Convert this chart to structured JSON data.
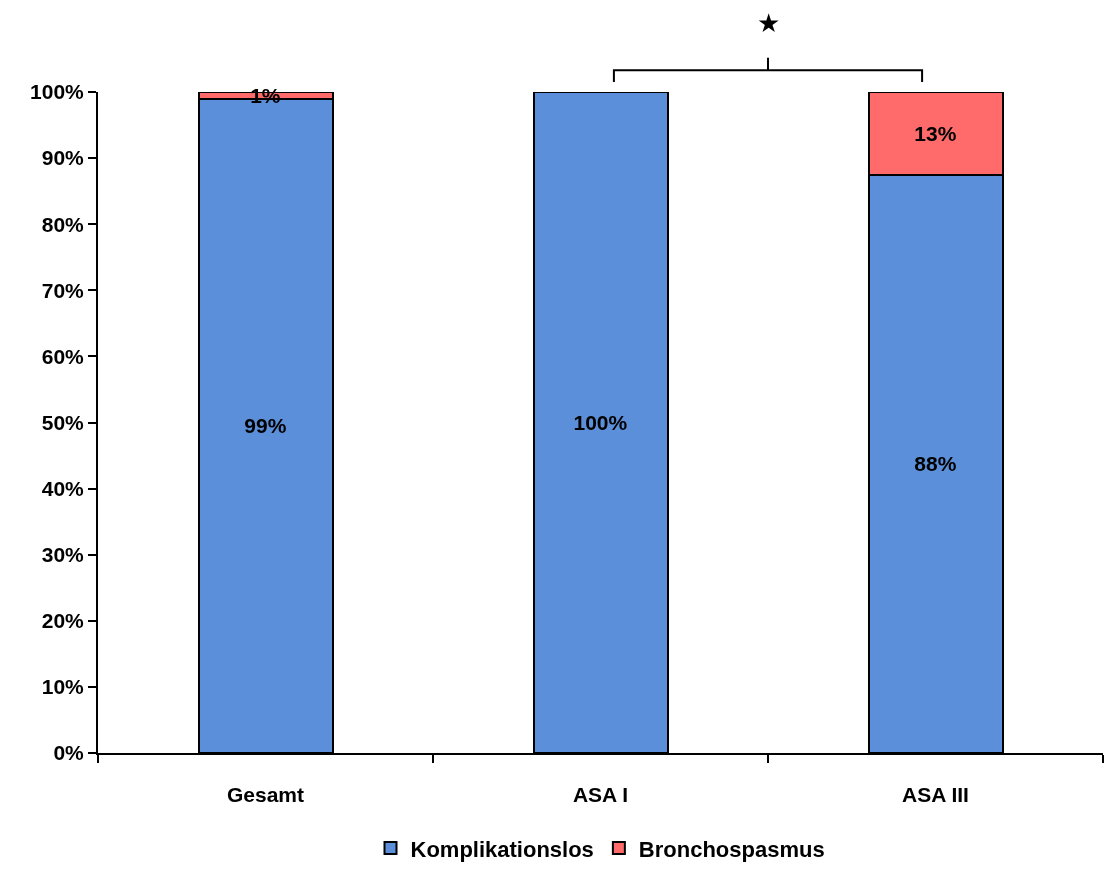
{
  "chart_data": {
    "type": "bar",
    "stacked": true,
    "categories": [
      "Gesamt",
      "ASA I",
      "ASA III"
    ],
    "series": [
      {
        "name": "Komplikationslos",
        "color": "#5b8fd9",
        "values": [
          99,
          100,
          87.5
        ],
        "value_labels": [
          "99%",
          "100%",
          "88%"
        ]
      },
      {
        "name": "Bronchospasmus",
        "color": "#ff6a6a",
        "values": [
          1,
          null,
          12.5
        ],
        "value_labels": [
          "1%",
          null,
          "13%"
        ]
      }
    ],
    "ylim": [
      0,
      100
    ],
    "yticks": [
      {
        "value": 0,
        "label": "0%"
      },
      {
        "value": 10,
        "label": "10%"
      },
      {
        "value": 20,
        "label": "20%"
      },
      {
        "value": 30,
        "label": "30%"
      },
      {
        "value": 40,
        "label": "40%"
      },
      {
        "value": 50,
        "label": "50%"
      },
      {
        "value": 60,
        "label": "60%"
      },
      {
        "value": 70,
        "label": "70%"
      },
      {
        "value": 80,
        "label": "80%"
      },
      {
        "value": 90,
        "label": "90%"
      },
      {
        "value": 100,
        "label": "100%"
      }
    ],
    "legend": "bottom",
    "annotations": [
      "★"
    ]
  }
}
